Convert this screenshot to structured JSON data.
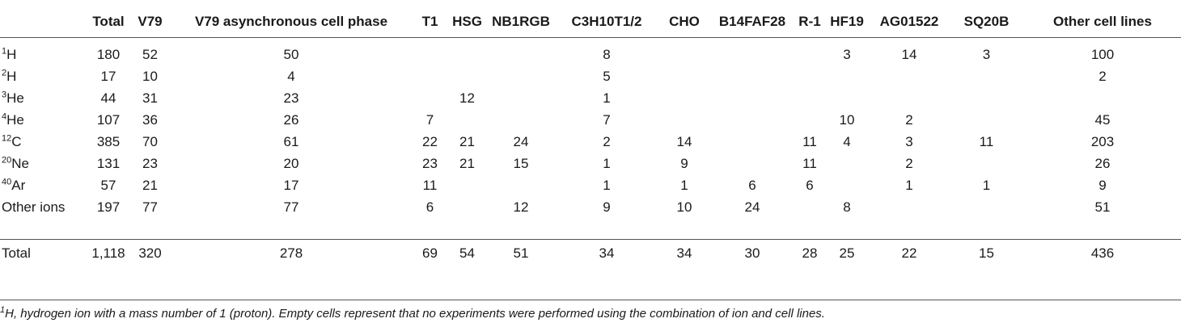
{
  "table": {
    "headers": [
      "",
      "Total",
      "V79",
      "V79 asynchronous cell phase",
      "T1",
      "HSG",
      "NB1RGB",
      "C3H10T1/2",
      "CHO",
      "B14FAF28",
      "R-1",
      "HF19",
      "AG01522",
      "SQ20B",
      "Other cell lines"
    ],
    "rows": [
      {
        "mass": "1",
        "label": "H",
        "cells": [
          "180",
          "52",
          "50",
          "",
          "",
          "",
          "8",
          "",
          "",
          "",
          "3",
          "14",
          "3",
          "100"
        ]
      },
      {
        "mass": "2",
        "label": "H",
        "cells": [
          "17",
          "10",
          "4",
          "",
          "",
          "",
          "5",
          "",
          "",
          "",
          "",
          "",
          "",
          "2"
        ]
      },
      {
        "mass": "3",
        "label": "He",
        "cells": [
          "44",
          "31",
          "23",
          "",
          "12",
          "",
          "1",
          "",
          "",
          "",
          "",
          "",
          "",
          ""
        ]
      },
      {
        "mass": "4",
        "label": "He",
        "cells": [
          "107",
          "36",
          "26",
          "7",
          "",
          "",
          "7",
          "",
          "",
          "",
          "10",
          "2",
          "",
          "45"
        ]
      },
      {
        "mass": "12",
        "label": "C",
        "cells": [
          "385",
          "70",
          "61",
          "22",
          "21",
          "24",
          "2",
          "14",
          "",
          "11",
          "4",
          "3",
          "11",
          "203"
        ]
      },
      {
        "mass": "20",
        "label": "Ne",
        "cells": [
          "131",
          "23",
          "20",
          "23",
          "21",
          "15",
          "1",
          "9",
          "",
          "11",
          "",
          "2",
          "",
          "26"
        ]
      },
      {
        "mass": "40",
        "label": "Ar",
        "cells": [
          "57",
          "21",
          "17",
          "11",
          "",
          "",
          "1",
          "1",
          "6",
          "6",
          "",
          "1",
          "1",
          "9"
        ]
      },
      {
        "mass": "",
        "label": "Other ions",
        "cells": [
          "197",
          "77",
          "77",
          "6",
          "",
          "12",
          "9",
          "10",
          "24",
          "",
          "8",
          "",
          "",
          "51"
        ]
      },
      {
        "mass": "",
        "label": "Total",
        "cells": [
          "1,118",
          "320",
          "278",
          "69",
          "54",
          "51",
          "34",
          "34",
          "30",
          "28",
          "25",
          "22",
          "15",
          "436"
        ]
      }
    ]
  },
  "footnote": {
    "mass": "1",
    "text": "H, hydrogen ion with a mass number of 1 (proton). Empty cells represent that no experiments were performed using the combination of ion and cell lines."
  }
}
